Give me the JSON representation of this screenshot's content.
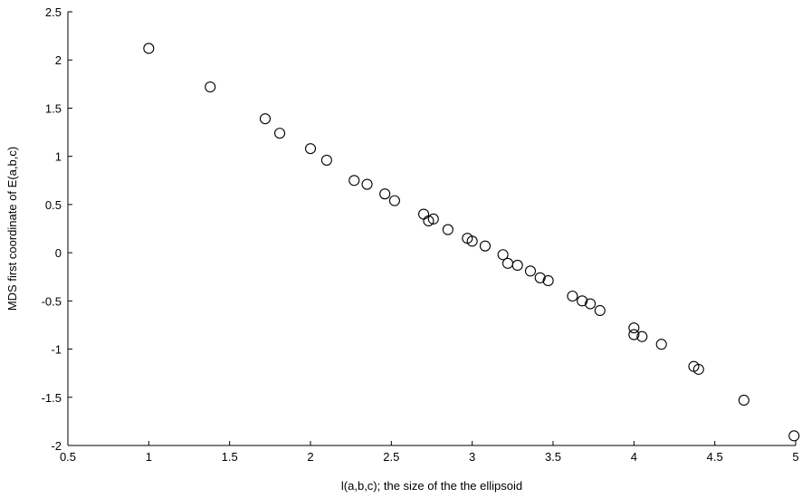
{
  "chart_data": {
    "type": "scatter",
    "title": "",
    "xlabel": "l(a,b,c); the size of the the ellipsoid",
    "ylabel": "MDS first coordinate of E(a,b,c)",
    "xlim": [
      0.5,
      5
    ],
    "ylim": [
      -2,
      2.5
    ],
    "xticks": [
      "0.5",
      "1",
      "1.5",
      "2",
      "2.5",
      "3",
      "3.5",
      "4",
      "4.5",
      "5"
    ],
    "yticks": [
      "2.5",
      "2",
      "1.5",
      "1",
      "0.5",
      "0",
      "-0.5",
      "-1",
      "-1.5",
      "-2"
    ],
    "grid": false,
    "marker": "open-circle",
    "colors": {
      "marker": "#000000",
      "axis": "#000000",
      "background": "#ffffff"
    },
    "points": [
      [
        1.0,
        2.12
      ],
      [
        1.38,
        1.72
      ],
      [
        1.72,
        1.39
      ],
      [
        1.81,
        1.24
      ],
      [
        2.0,
        1.08
      ],
      [
        2.1,
        0.96
      ],
      [
        2.27,
        0.75
      ],
      [
        2.35,
        0.71
      ],
      [
        2.46,
        0.61
      ],
      [
        2.52,
        0.54
      ],
      [
        2.7,
        0.4
      ],
      [
        2.73,
        0.33
      ],
      [
        2.76,
        0.35
      ],
      [
        2.85,
        0.24
      ],
      [
        2.97,
        0.15
      ],
      [
        3.0,
        0.12
      ],
      [
        3.08,
        0.07
      ],
      [
        3.19,
        -0.02
      ],
      [
        3.22,
        -0.11
      ],
      [
        3.28,
        -0.13
      ],
      [
        3.36,
        -0.19
      ],
      [
        3.42,
        -0.26
      ],
      [
        3.47,
        -0.29
      ],
      [
        3.62,
        -0.45
      ],
      [
        3.68,
        -0.5
      ],
      [
        3.73,
        -0.53
      ],
      [
        3.79,
        -0.6
      ],
      [
        4.0,
        -0.78
      ],
      [
        4.0,
        -0.85
      ],
      [
        4.05,
        -0.87
      ],
      [
        4.17,
        -0.95
      ],
      [
        4.37,
        -1.18
      ],
      [
        4.4,
        -1.21
      ],
      [
        4.68,
        -1.53
      ],
      [
        4.99,
        -1.9
      ]
    ]
  }
}
